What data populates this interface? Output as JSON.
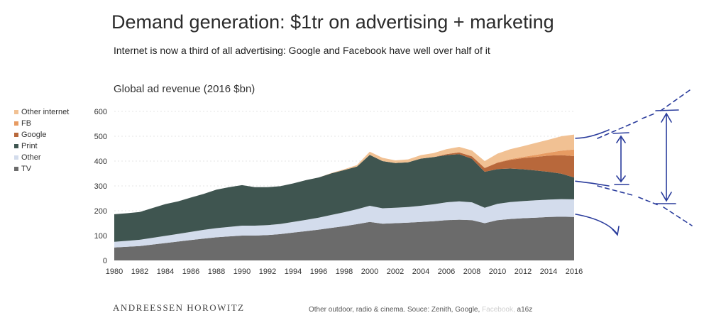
{
  "header": {
    "title": "Demand generation: $1tr on advertising + marketing",
    "subtitle": "Internet is now a third of all advertising: Google and Facebook have well over half of it"
  },
  "colors": {
    "tv": "#6b6b6b",
    "other": "#d3dcec",
    "print": "#3f5550",
    "google": "#b8683b",
    "fb": "#e79b62",
    "other_internet": "#f1c193",
    "annotation": "#2a3c9c"
  },
  "chart_data": {
    "type": "area",
    "title": "Global ad revenue (2016 $bn)",
    "xlabel": "",
    "ylabel": "",
    "ylim": [
      0,
      600
    ],
    "yticks": [
      "0",
      "100",
      "200",
      "300",
      "400",
      "500",
      "600"
    ],
    "xticks": [
      "1980",
      "1982",
      "1984",
      "1986",
      "1988",
      "1990",
      "1992",
      "1994",
      "1996",
      "1998",
      "2000",
      "2002",
      "2004",
      "2006",
      "2008",
      "2010",
      "2012",
      "2014",
      "2016"
    ],
    "stacked": true,
    "grid": true,
    "legend_position": "left",
    "x": [
      1980,
      1981,
      1982,
      1983,
      1984,
      1985,
      1986,
      1987,
      1988,
      1989,
      1990,
      1991,
      1992,
      1993,
      1994,
      1995,
      1996,
      1997,
      1998,
      1999,
      2000,
      2001,
      2002,
      2003,
      2004,
      2005,
      2006,
      2007,
      2008,
      2009,
      2010,
      2011,
      2012,
      2013,
      2014,
      2015,
      2016
    ],
    "series": [
      {
        "name": "TV",
        "color": "#6b6b6b",
        "values": [
          52,
          55,
          58,
          64,
          70,
          76,
          82,
          88,
          93,
          97,
          100,
          100,
          102,
          106,
          112,
          118,
          124,
          131,
          138,
          146,
          155,
          148,
          150,
          152,
          155,
          158,
          162,
          164,
          162,
          150,
          162,
          167,
          170,
          172,
          175,
          176,
          175
        ]
      },
      {
        "name": "Other",
        "color": "#d3dcec",
        "values": [
          23,
          24,
          25,
          27,
          29,
          31,
          33,
          35,
          37,
          38,
          40,
          40,
          40,
          41,
          43,
          45,
          48,
          52,
          56,
          60,
          65,
          62,
          62,
          63,
          65,
          68,
          72,
          74,
          72,
          62,
          66,
          68,
          69,
          70,
          70,
          71,
          71
        ]
      },
      {
        "name": "Print",
        "color": "#3f5550",
        "values": [
          111,
          111,
          112,
          120,
          128,
          131,
          138,
          145,
          155,
          160,
          163,
          155,
          153,
          152,
          155,
          160,
          162,
          168,
          170,
          172,
          205,
          190,
          180,
          180,
          190,
          190,
          190,
          190,
          175,
          145,
          140,
          135,
          128,
          120,
          112,
          102,
          88
        ]
      },
      {
        "name": "Google",
        "color": "#b8683b",
        "values": [
          0,
          0,
          0,
          0,
          0,
          0,
          0,
          0,
          0,
          0,
          0,
          0,
          0,
          0,
          0,
          0,
          0,
          0,
          0,
          0,
          0,
          0,
          0,
          0,
          0,
          0,
          4,
          7,
          10,
          15,
          25,
          35,
          45,
          55,
          65,
          75,
          86
        ]
      },
      {
        "name": "FB",
        "color": "#e79b62",
        "values": [
          0,
          0,
          0,
          0,
          0,
          0,
          0,
          0,
          0,
          0,
          0,
          0,
          0,
          0,
          0,
          0,
          0,
          0,
          0,
          0,
          0,
          0,
          0,
          0,
          0,
          0,
          0,
          0,
          0,
          0,
          2,
          3,
          5,
          8,
          12,
          18,
          27
        ]
      },
      {
        "name": "Other internet",
        "color": "#f1c193",
        "values": [
          0,
          0,
          0,
          0,
          0,
          0,
          0,
          0,
          0,
          0,
          0,
          0,
          0,
          0,
          0,
          0,
          0,
          1,
          3,
          6,
          13,
          13,
          11,
          12,
          14,
          16,
          20,
          22,
          24,
          28,
          35,
          40,
          43,
          48,
          52,
          58,
          60
        ]
      }
    ]
  },
  "footer": {
    "brand": "ANDREESSEN HOROWITZ",
    "source_prefix": "Other",
    "source_main": " outdoor, radio & cinema. Souce: Zenith, Google,",
    "source_faint": " Facebook,",
    "source_suffix": " a16z"
  }
}
